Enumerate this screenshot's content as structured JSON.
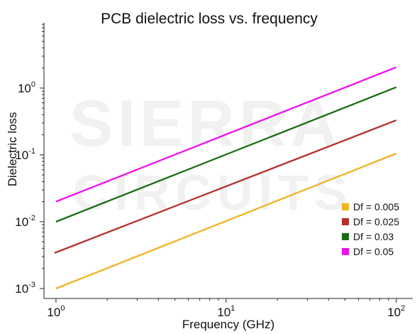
{
  "chart_data": {
    "type": "line",
    "title": "PCB dielectric loss vs. frequency",
    "xlabel": "Frequency (GHz)",
    "ylabel": "Dielectric loss",
    "x_scale": "log",
    "y_scale": "log",
    "xlim": [
      0.85,
      125
    ],
    "ylim": [
      0.00071,
      9.5
    ],
    "x_ticks": [
      {
        "value": 1,
        "base": "10",
        "exp": "0"
      },
      {
        "value": 10,
        "base": "10",
        "exp": "1"
      },
      {
        "value": 100,
        "base": "10",
        "exp": "2"
      }
    ],
    "y_ticks": [
      {
        "value": 0.001,
        "base": "10",
        "exp": "-3"
      },
      {
        "value": 0.01,
        "base": "10",
        "exp": "-2"
      },
      {
        "value": 0.1,
        "base": "10",
        "exp": "-1"
      },
      {
        "value": 1,
        "base": "10",
        "exp": "0"
      }
    ],
    "legend_position": "right",
    "series": [
      {
        "name": "Df = 0.005",
        "color": "#f0b323",
        "x": [
          1,
          100
        ],
        "y": [
          0.001,
          0.105
        ]
      },
      {
        "name": "Df = 0.025",
        "color": "#b5302a",
        "x": [
          0.98,
          100
        ],
        "y": [
          0.0034,
          0.33
        ]
      },
      {
        "name": "Df = 0.03",
        "color": "#1a6e12",
        "x": [
          1,
          100
        ],
        "y": [
          0.01,
          1.03
        ]
      },
      {
        "name": "Df = 0.05",
        "color": "#ee10ee",
        "x": [
          1,
          100
        ],
        "y": [
          0.02,
          2.05
        ]
      }
    ]
  },
  "watermark": {
    "line1": "SIERRA",
    "line2": "CIRCUITS",
    "color": "#f1f1f1"
  }
}
